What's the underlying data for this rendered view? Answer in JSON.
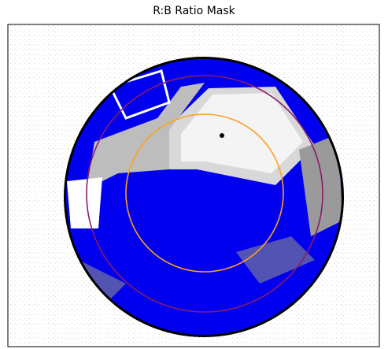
{
  "title": "R:B Ratio Mask"
}
